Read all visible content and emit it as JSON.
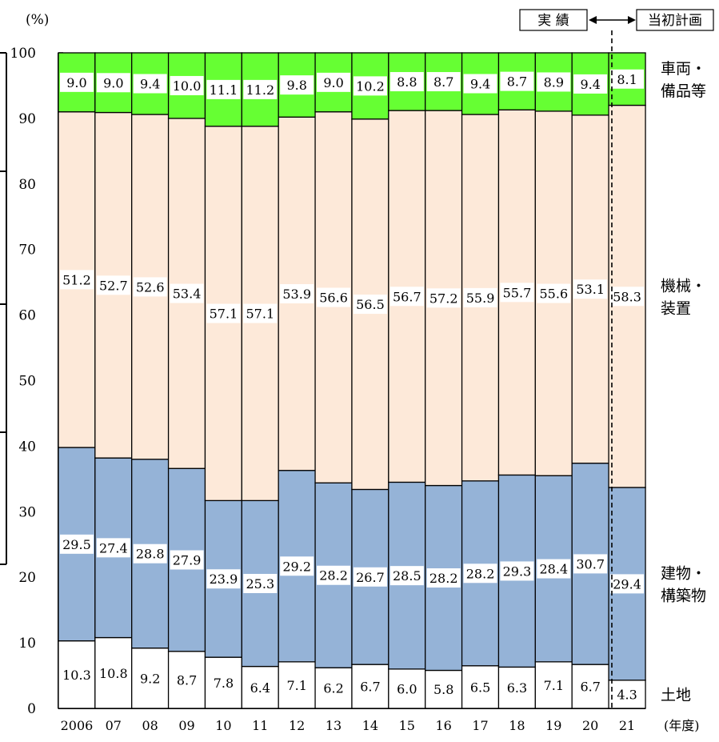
{
  "chart_data": {
    "type": "bar",
    "stacked": true,
    "unit_label": "(%)",
    "x_unit_label": "(年度)",
    "ylim": [
      0,
      100
    ],
    "yticks": [
      0,
      10,
      20,
      30,
      40,
      50,
      60,
      70,
      80,
      90,
      100
    ],
    "categories": [
      "2006",
      "07",
      "08",
      "09",
      "10",
      "11",
      "12",
      "13",
      "14",
      "15",
      "16",
      "17",
      "18",
      "19",
      "20",
      "21"
    ],
    "series": [
      {
        "name": "土地",
        "color": "#ffffff",
        "values": [
          10.3,
          10.8,
          9.2,
          8.7,
          7.8,
          6.4,
          7.1,
          6.2,
          6.7,
          6.0,
          5.8,
          6.5,
          6.3,
          7.1,
          6.7,
          4.3
        ]
      },
      {
        "name": "建物・構築物",
        "color": "#95b3d7",
        "values": [
          29.5,
          27.4,
          28.8,
          27.9,
          23.9,
          25.3,
          29.2,
          28.2,
          26.7,
          28.5,
          28.2,
          28.2,
          29.3,
          28.4,
          30.7,
          29.4
        ]
      },
      {
        "name": "機械・装置",
        "color": "#fde9d9",
        "values": [
          51.2,
          52.7,
          52.6,
          53.4,
          57.1,
          57.1,
          53.9,
          56.6,
          56.5,
          56.7,
          57.2,
          55.9,
          55.7,
          55.6,
          53.1,
          58.3
        ]
      },
      {
        "name": "車両・備品等",
        "color": "#66ff33",
        "values": [
          9.0,
          9.0,
          9.4,
          10.0,
          11.1,
          11.2,
          9.8,
          9.0,
          10.2,
          8.8,
          8.7,
          9.4,
          8.7,
          8.9,
          9.4,
          8.1
        ]
      }
    ],
    "series_labels": [
      {
        "series": 0,
        "lines": [
          "土地"
        ]
      },
      {
        "series": 1,
        "lines": [
          "建物・",
          "構築物"
        ]
      },
      {
        "series": 2,
        "lines": [
          "機械・",
          "装置"
        ]
      },
      {
        "series": 3,
        "lines": [
          "車両・",
          "備品等"
        ]
      }
    ],
    "legend": {
      "actual": "実 績",
      "plan": "当初計画"
    }
  }
}
